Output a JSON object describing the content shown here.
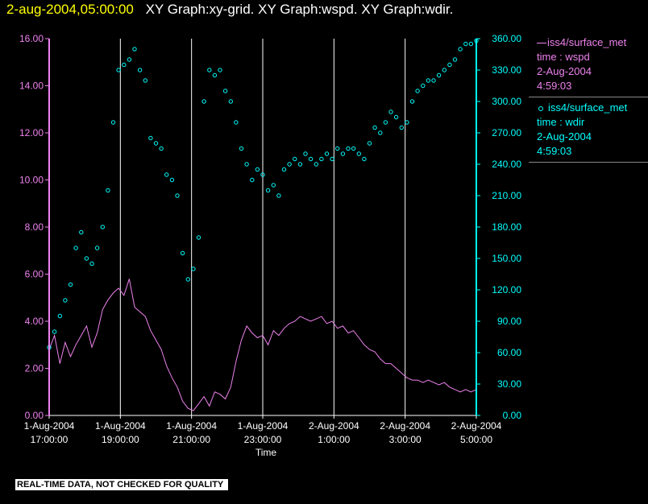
{
  "header": {
    "date": "2-aug-2004,05:00:00",
    "graphs": "XY Graph:xy-grid.  XY Graph:wspd.  XY Graph:wdir."
  },
  "legend": {
    "wspd": {
      "source": "iss4/surface_met",
      "time_label": "time : wspd",
      "date": "2-Aug-2004",
      "time": "4:59:03"
    },
    "wdir": {
      "source": "iss4/surface_met",
      "time_label": "time : wdir",
      "date": "2-Aug-2004",
      "time": "4:59:03"
    }
  },
  "footer": {
    "disclaimer": "REAL-TIME DATA, NOT CHECKED FOR QUALITY"
  },
  "colors": {
    "wspd": "#ee82ee",
    "wdir": "#00ffff",
    "grid": "#ffffff",
    "title_date": "#ffff00"
  },
  "chart_data": {
    "type": "line",
    "xlabel": "Time",
    "x_unit": "hours since 1-Aug-2004 17:00:00",
    "xlim": [
      0,
      12
    ],
    "x_ticks": [
      {
        "x": 0,
        "line1": "1-Aug-2004",
        "line2": "17:00:00"
      },
      {
        "x": 2,
        "line1": "1-Aug-2004",
        "line2": "19:00:00"
      },
      {
        "x": 4,
        "line1": "1-Aug-2004",
        "line2": "21:00:00"
      },
      {
        "x": 6,
        "line1": "1-Aug-2004",
        "line2": "23:00:00"
      },
      {
        "x": 8,
        "line1": "2-Aug-2004",
        "line2": "1:00:00"
      },
      {
        "x": 10,
        "line1": "2-Aug-2004",
        "line2": "3:00:00"
      },
      {
        "x": 12,
        "line1": "2-Aug-2004",
        "line2": "5:00:00"
      }
    ],
    "y_left": {
      "ylim": [
        0,
        16
      ],
      "ticks": [
        "0.00",
        "2.00",
        "4.00",
        "6.00",
        "8.00",
        "10.00",
        "12.00",
        "14.00",
        "16.00"
      ]
    },
    "y_right": {
      "ylim": [
        0,
        360
      ],
      "ticks": [
        "0.00",
        "30.00",
        "60.00",
        "90.00",
        "120.00",
        "150.00",
        "180.00",
        "210.00",
        "240.00",
        "270.00",
        "300.00",
        "330.00",
        "360.00"
      ]
    },
    "grid": "vertical",
    "series": [
      {
        "name": "iss4/surface_met",
        "field": "wspd",
        "axis": "left",
        "style": "line",
        "x": [
          0.0,
          0.15,
          0.3,
          0.45,
          0.6,
          0.75,
          0.9,
          1.05,
          1.2,
          1.35,
          1.5,
          1.65,
          1.8,
          1.95,
          2.1,
          2.25,
          2.4,
          2.55,
          2.7,
          2.85,
          3.0,
          3.15,
          3.3,
          3.45,
          3.6,
          3.75,
          3.9,
          4.05,
          4.2,
          4.35,
          4.5,
          4.65,
          4.8,
          4.95,
          5.1,
          5.25,
          5.4,
          5.55,
          5.7,
          5.85,
          6.0,
          6.15,
          6.3,
          6.45,
          6.6,
          6.75,
          6.9,
          7.05,
          7.2,
          7.35,
          7.5,
          7.65,
          7.8,
          7.95,
          8.1,
          8.25,
          8.4,
          8.55,
          8.7,
          8.85,
          9.0,
          9.15,
          9.3,
          9.45,
          9.6,
          9.75,
          9.9,
          10.05,
          10.2,
          10.35,
          10.5,
          10.65,
          10.8,
          10.95,
          11.1,
          11.25,
          11.4,
          11.55,
          11.7,
          11.85,
          12.0
        ],
        "y": [
          2.8,
          3.4,
          2.2,
          3.1,
          2.5,
          3.0,
          3.4,
          3.8,
          2.9,
          3.5,
          4.5,
          4.9,
          5.2,
          5.4,
          5.1,
          5.8,
          4.6,
          4.4,
          4.2,
          3.6,
          3.2,
          2.8,
          2.1,
          1.6,
          1.2,
          0.6,
          0.3,
          0.2,
          0.5,
          0.8,
          0.4,
          1.0,
          0.9,
          0.7,
          1.2,
          2.3,
          3.2,
          3.8,
          3.5,
          3.3,
          3.4,
          3.0,
          3.6,
          3.4,
          3.7,
          3.9,
          4.0,
          4.2,
          4.1,
          4.0,
          4.1,
          4.2,
          3.9,
          4.0,
          3.7,
          3.8,
          3.5,
          3.6,
          3.3,
          3.0,
          2.8,
          2.7,
          2.4,
          2.2,
          2.2,
          2.0,
          1.8,
          1.6,
          1.5,
          1.5,
          1.4,
          1.5,
          1.4,
          1.3,
          1.4,
          1.2,
          1.1,
          1.0,
          1.1,
          1.0,
          1.1
        ]
      },
      {
        "name": "iss4/surface_met",
        "field": "wdir",
        "axis": "right",
        "style": "scatter",
        "x": [
          0.0,
          0.15,
          0.3,
          0.45,
          0.6,
          0.75,
          0.9,
          1.05,
          1.2,
          1.35,
          1.5,
          1.65,
          1.8,
          1.95,
          2.1,
          2.25,
          2.4,
          2.55,
          2.7,
          2.85,
          3.0,
          3.15,
          3.3,
          3.45,
          3.6,
          3.75,
          3.9,
          4.05,
          4.2,
          4.35,
          4.5,
          4.65,
          4.8,
          4.95,
          5.1,
          5.25,
          5.4,
          5.55,
          5.7,
          5.85,
          6.0,
          6.15,
          6.3,
          6.45,
          6.6,
          6.75,
          6.9,
          7.05,
          7.2,
          7.35,
          7.5,
          7.65,
          7.8,
          7.95,
          8.1,
          8.25,
          8.4,
          8.55,
          8.7,
          8.85,
          9.0,
          9.15,
          9.3,
          9.45,
          9.6,
          9.75,
          9.9,
          10.05,
          10.2,
          10.35,
          10.5,
          10.65,
          10.8,
          10.95,
          11.1,
          11.25,
          11.4,
          11.55,
          11.7,
          11.85,
          12.0
        ],
        "y": [
          65,
          80,
          95,
          110,
          125,
          160,
          175,
          150,
          145,
          160,
          180,
          215,
          280,
          330,
          335,
          340,
          350,
          330,
          320,
          265,
          260,
          255,
          230,
          225,
          210,
          155,
          130,
          140,
          170,
          300,
          330,
          325,
          330,
          310,
          300,
          280,
          255,
          240,
          225,
          235,
          230,
          215,
          220,
          210,
          235,
          240,
          245,
          240,
          250,
          245,
          240,
          245,
          250,
          245,
          255,
          250,
          255,
          255,
          250,
          245,
          260,
          275,
          270,
          280,
          290,
          285,
          275,
          280,
          300,
          310,
          315,
          320,
          320,
          325,
          330,
          335,
          340,
          350,
          355,
          355,
          358
        ]
      }
    ]
  }
}
